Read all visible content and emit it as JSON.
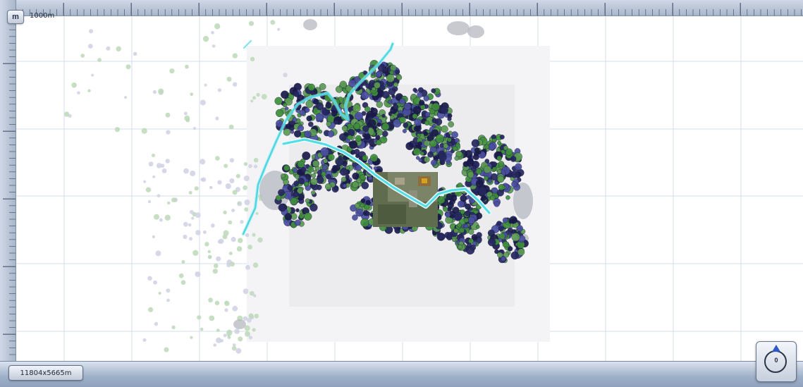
{
  "toolbar": {
    "unit_button_label": "m",
    "scale_label": "1000m"
  },
  "status": {
    "map_size_label": "11804x5665m"
  },
  "compass": {
    "heading_label": "0",
    "icon": "compass-icon"
  },
  "colors": {
    "canvas_bg": "#ffffff",
    "grid_line": "#d4ddec",
    "ruler_bg": "#b4c1d3",
    "tree_green": "#3f8f3a",
    "tree_navy": "#25275e",
    "tree_blue": "#4a4fa0",
    "river": "#5fe0e8",
    "aerial_tile": "#6a7a58"
  }
}
